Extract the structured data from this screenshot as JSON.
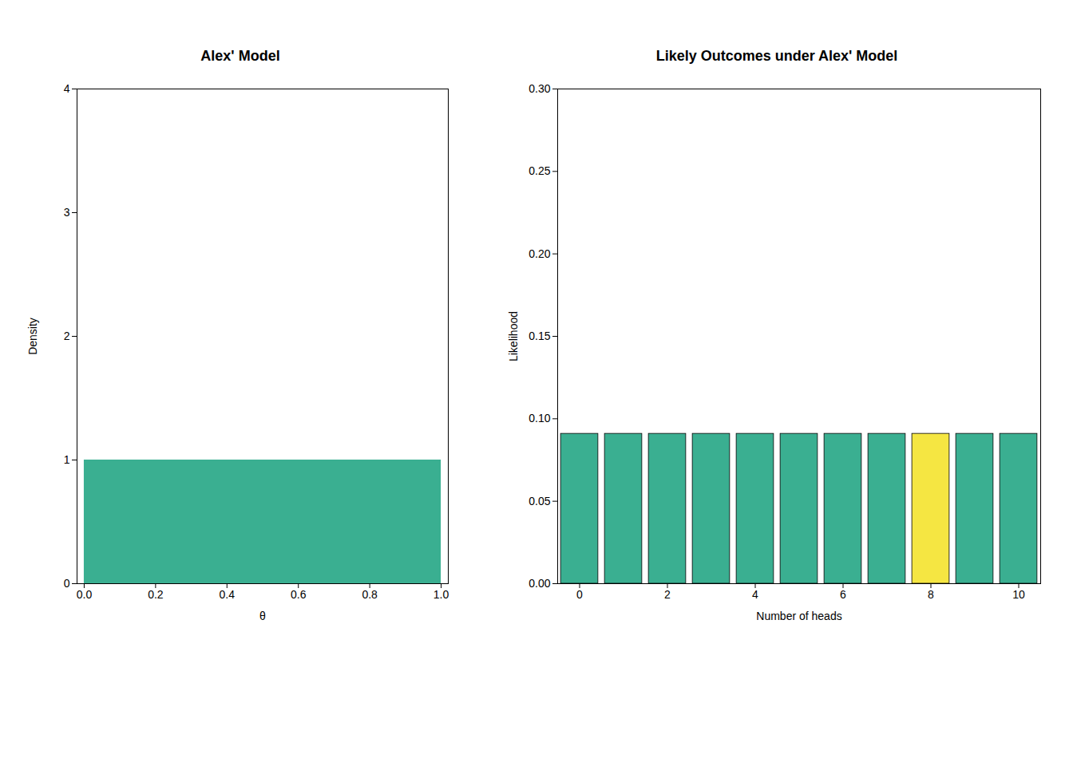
{
  "chart_data": [
    {
      "type": "area",
      "title": "Alex' Model",
      "x_label": "θ",
      "y_label": "Density",
      "x": [
        0.0,
        1.0
      ],
      "values": [
        1.0,
        1.0
      ],
      "color": "#3aaf91",
      "xlim": [
        -0.02,
        1.02
      ],
      "ylim": [
        0.0,
        4.0
      ],
      "xticks": [
        {
          "value": 0.0,
          "label": "0.0"
        },
        0.2,
        0.4,
        0.6,
        0.8,
        {
          "value": 1.0,
          "label": "1.0"
        }
      ],
      "yticks": [
        0,
        1,
        2,
        3,
        4
      ]
    },
    {
      "type": "bar",
      "title": "Likely Outcomes under Alex' Model",
      "x_label": "Number of heads",
      "y_label": "Likelihood",
      "x": [
        0,
        1,
        2,
        3,
        4,
        5,
        6,
        7,
        8,
        9,
        10
      ],
      "values": [
        0.0909,
        0.0909,
        0.0909,
        0.0909,
        0.0909,
        0.0909,
        0.0909,
        0.0909,
        0.0909,
        0.0909,
        0.0909
      ],
      "colors": [
        "#3aaf91",
        "#3aaf91",
        "#3aaf91",
        "#3aaf91",
        "#3aaf91",
        "#3aaf91",
        "#3aaf91",
        "#3aaf91",
        "#f5e642",
        "#3aaf91",
        "#3aaf91"
      ],
      "xlim": [
        -0.5,
        10.5
      ],
      "ylim": [
        0.0,
        0.3
      ],
      "xticks": [
        0,
        2,
        4,
        6,
        8,
        10
      ],
      "yticks": [
        {
          "value": 0.0,
          "label": "0.00"
        },
        0.05,
        {
          "value": 0.1,
          "label": "0.10"
        },
        0.15,
        {
          "value": 0.2,
          "label": "0.20"
        },
        0.25,
        {
          "value": 0.3,
          "label": "0.30"
        }
      ]
    }
  ]
}
